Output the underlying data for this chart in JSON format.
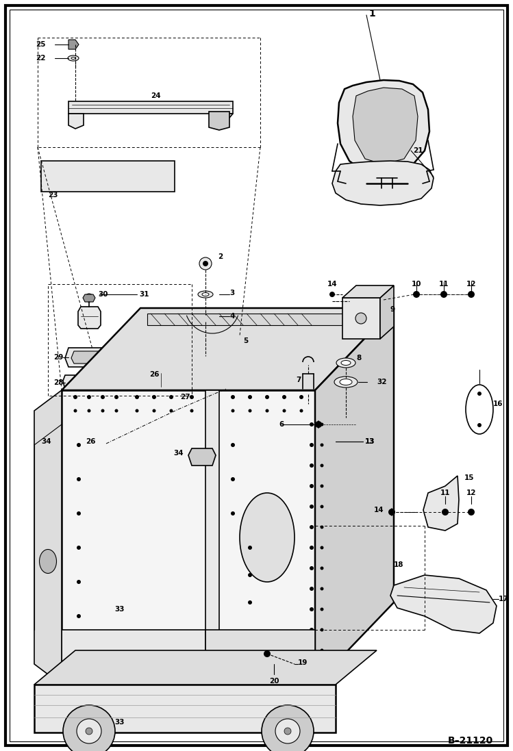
{
  "background_color": "#ffffff",
  "border_color": "#000000",
  "figure_width": 7.49,
  "figure_height": 10.97,
  "dpi": 100,
  "ref_number": "B–21120",
  "label_fontsize": 7.5,
  "label_fontsize_large": 9
}
